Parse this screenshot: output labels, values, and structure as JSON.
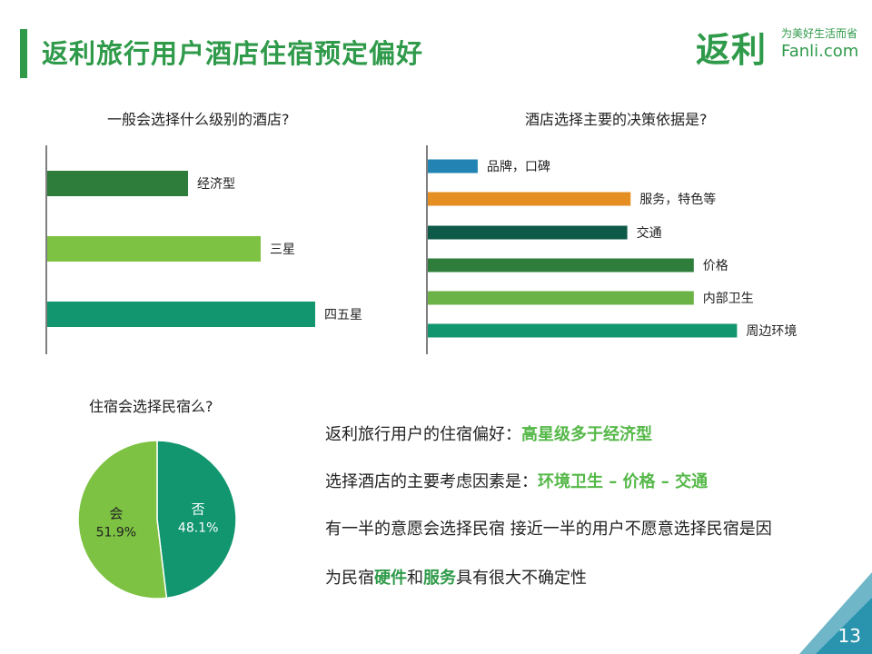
{
  "header": {
    "title": "返利旅行用户酒店住宿预定偏好",
    "logo_main": "返利",
    "logo_slogan": "为美好生活而省",
    "logo_sub": "Fanli.com",
    "accent": "#2f9a4a"
  },
  "chart_data": [
    {
      "type": "bar",
      "orientation": "horizontal",
      "title": "一般会选择什么级别的酒店?",
      "categories": [
        "经济型",
        "三星",
        "四五星"
      ],
      "values": [
        31,
        47,
        59
      ],
      "colors": [
        "#2e7d3a",
        "#7dc242",
        "#11966f"
      ],
      "xlim": [
        0,
        100
      ],
      "grid": false
    },
    {
      "type": "bar",
      "orientation": "horizontal",
      "title": "酒店选择主要的决策依据是?",
      "categories": [
        "品牌，口碑",
        "服务，特色等",
        "交通",
        "价格",
        "内部卫生",
        "周边环境"
      ],
      "values": [
        15,
        61,
        60,
        80,
        80,
        93
      ],
      "colors": [
        "#2384b4",
        "#e58e21",
        "#0e5a48",
        "#2e7d3a",
        "#6cb347",
        "#11966f"
      ],
      "xlim": [
        0,
        100
      ],
      "grid": false
    },
    {
      "type": "pie",
      "title": "住宿会选择民宿么?",
      "labels": [
        "会",
        "否"
      ],
      "values": [
        51.9,
        48.1
      ],
      "value_labels": [
        "51.9%",
        "48.1%"
      ],
      "colors": [
        "#7dc242",
        "#11966f"
      ]
    }
  ],
  "insights": {
    "line1_text": "返利旅行用户的住宿偏好：",
    "line1_hl": "高星级多于经济型",
    "line2_text": "选择酒店的主要考虑因素是：",
    "line2_hl": "环境卫生 – 价格 – 交通",
    "line3_text": "有一半的意愿会选择民宿 接近一半的用户不愿意选择民宿是因",
    "line4_a": "为民宿",
    "line4_hl1": "硬件",
    "line4_b": "和",
    "line4_hl2": "服务",
    "line4_c": "具有很大不确定性"
  },
  "footer": {
    "page_number": "13"
  }
}
